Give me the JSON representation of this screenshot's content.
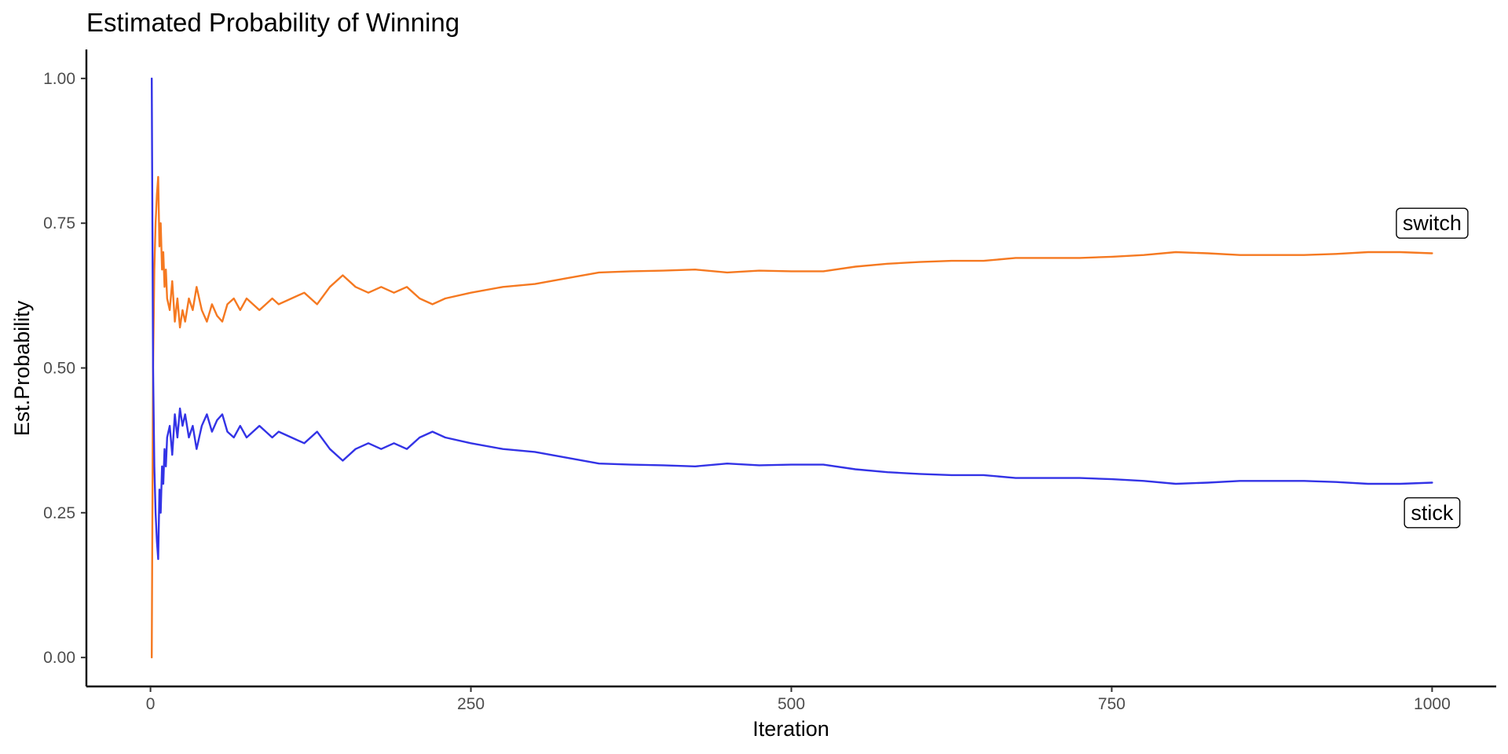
{
  "chart_data": {
    "type": "line",
    "title": "Estimated Probability of Winning",
    "xlabel": "Iteration",
    "ylabel": "Est.Probability",
    "xlim": [
      -50,
      1050
    ],
    "ylim": [
      -0.05,
      1.05
    ],
    "x_ticks": [
      0,
      250,
      500,
      750,
      1000
    ],
    "x_tick_labels": [
      "0",
      "250",
      "500",
      "750",
      "1000"
    ],
    "y_ticks": [
      0,
      0.25,
      0.5,
      0.75,
      1.0
    ],
    "y_tick_labels": [
      "0.00",
      "0.25",
      "0.50",
      "0.75",
      "1.00"
    ],
    "grid": false,
    "legend": "none",
    "series": [
      {
        "name": "switch",
        "color": "#f57921",
        "x": [
          1,
          2,
          3,
          4,
          5,
          6,
          7,
          8,
          9,
          10,
          11,
          12,
          13,
          15,
          17,
          19,
          21,
          23,
          25,
          27,
          30,
          33,
          36,
          40,
          44,
          48,
          52,
          56,
          60,
          65,
          70,
          75,
          80,
          85,
          90,
          95,
          100,
          110,
          120,
          130,
          140,
          150,
          160,
          170,
          180,
          190,
          200,
          210,
          220,
          230,
          250,
          275,
          300,
          325,
          350,
          375,
          400,
          425,
          450,
          475,
          500,
          525,
          550,
          575,
          600,
          625,
          650,
          675,
          700,
          725,
          750,
          775,
          800,
          825,
          850,
          875,
          900,
          925,
          950,
          975,
          1000
        ],
        "values": [
          0.0,
          0.5,
          0.67,
          0.75,
          0.8,
          0.83,
          0.71,
          0.75,
          0.67,
          0.7,
          0.64,
          0.67,
          0.62,
          0.6,
          0.65,
          0.58,
          0.62,
          0.57,
          0.6,
          0.58,
          0.62,
          0.6,
          0.64,
          0.6,
          0.58,
          0.61,
          0.59,
          0.58,
          0.61,
          0.62,
          0.6,
          0.62,
          0.61,
          0.6,
          0.61,
          0.62,
          0.61,
          0.62,
          0.63,
          0.61,
          0.64,
          0.66,
          0.64,
          0.63,
          0.64,
          0.63,
          0.64,
          0.62,
          0.61,
          0.62,
          0.63,
          0.64,
          0.645,
          0.655,
          0.665,
          0.667,
          0.668,
          0.67,
          0.665,
          0.668,
          0.667,
          0.667,
          0.675,
          0.68,
          0.683,
          0.685,
          0.685,
          0.69,
          0.69,
          0.69,
          0.692,
          0.695,
          0.7,
          0.698,
          0.695,
          0.695,
          0.695,
          0.697,
          0.7,
          0.7,
          0.698
        ]
      },
      {
        "name": "stick",
        "color": "#3333e6",
        "x": [
          1,
          2,
          3,
          4,
          5,
          6,
          7,
          8,
          9,
          10,
          11,
          12,
          13,
          15,
          17,
          19,
          21,
          23,
          25,
          27,
          30,
          33,
          36,
          40,
          44,
          48,
          52,
          56,
          60,
          65,
          70,
          75,
          80,
          85,
          90,
          95,
          100,
          110,
          120,
          130,
          140,
          150,
          160,
          170,
          180,
          190,
          200,
          210,
          220,
          230,
          250,
          275,
          300,
          325,
          350,
          375,
          400,
          425,
          450,
          475,
          500,
          525,
          550,
          575,
          600,
          625,
          650,
          675,
          700,
          725,
          750,
          775,
          800,
          825,
          850,
          875,
          900,
          925,
          950,
          975,
          1000
        ],
        "values": [
          1.0,
          0.5,
          0.33,
          0.25,
          0.2,
          0.17,
          0.29,
          0.25,
          0.33,
          0.3,
          0.36,
          0.33,
          0.38,
          0.4,
          0.35,
          0.42,
          0.38,
          0.43,
          0.4,
          0.42,
          0.38,
          0.4,
          0.36,
          0.4,
          0.42,
          0.39,
          0.41,
          0.42,
          0.39,
          0.38,
          0.4,
          0.38,
          0.39,
          0.4,
          0.39,
          0.38,
          0.39,
          0.38,
          0.37,
          0.39,
          0.36,
          0.34,
          0.36,
          0.37,
          0.36,
          0.37,
          0.36,
          0.38,
          0.39,
          0.38,
          0.37,
          0.36,
          0.355,
          0.345,
          0.335,
          0.333,
          0.332,
          0.33,
          0.335,
          0.332,
          0.333,
          0.333,
          0.325,
          0.32,
          0.317,
          0.315,
          0.315,
          0.31,
          0.31,
          0.31,
          0.308,
          0.305,
          0.3,
          0.302,
          0.305,
          0.305,
          0.305,
          0.303,
          0.3,
          0.3,
          0.302
        ]
      }
    ],
    "annotations": [
      {
        "text": "switch",
        "x": 1000,
        "y": 0.75
      },
      {
        "text": "stick",
        "x": 1000,
        "y": 0.25
      }
    ]
  }
}
